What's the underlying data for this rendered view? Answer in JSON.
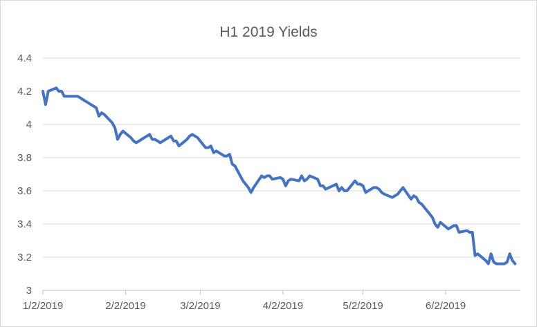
{
  "colors": {
    "series": "#4472c4",
    "grid": "#d9d9d9",
    "text": "#595959"
  },
  "chart_data": {
    "type": "line",
    "title": "H1 2019 Yields",
    "xlabel": "",
    "ylabel": "",
    "ylim": [
      3,
      4.4
    ],
    "y_ticks": [
      "3",
      "3.2",
      "3.4",
      "3.6",
      "3.8",
      "4",
      "4.2",
      "4.4"
    ],
    "x_ticks": [
      "1/2/2019",
      "2/2/2019",
      "3/2/2019",
      "4/2/2019",
      "5/2/2019",
      "6/2/2019"
    ],
    "x_tick_dates": [
      "2019-01-02",
      "2019-02-02",
      "2019-03-02",
      "2019-04-02",
      "2019-05-02",
      "2019-06-02"
    ],
    "grid": true,
    "legend": "none",
    "series": [
      {
        "x": [
          "2019-01-02",
          "2019-01-03",
          "2019-01-04",
          "2019-01-07",
          "2019-01-08",
          "2019-01-09",
          "2019-01-10",
          "2019-01-11",
          "2019-01-14",
          "2019-01-15",
          "2019-01-16",
          "2019-01-17",
          "2019-01-18",
          "2019-01-22",
          "2019-01-23",
          "2019-01-24",
          "2019-01-25",
          "2019-01-28",
          "2019-01-29",
          "2019-01-30",
          "2019-01-31",
          "2019-02-01",
          "2019-02-04",
          "2019-02-05",
          "2019-02-06",
          "2019-02-07",
          "2019-02-08",
          "2019-02-11",
          "2019-02-12",
          "2019-02-13",
          "2019-02-14",
          "2019-02-15",
          "2019-02-19",
          "2019-02-20",
          "2019-02-21",
          "2019-02-22",
          "2019-02-25",
          "2019-02-26",
          "2019-02-27",
          "2019-02-28",
          "2019-03-01",
          "2019-03-04",
          "2019-03-05",
          "2019-03-06",
          "2019-03-07",
          "2019-03-08",
          "2019-03-11",
          "2019-03-12",
          "2019-03-13",
          "2019-03-14",
          "2019-03-15",
          "2019-03-18",
          "2019-03-19",
          "2019-03-20",
          "2019-03-21",
          "2019-03-22",
          "2019-03-25",
          "2019-03-26",
          "2019-03-27",
          "2019-03-28",
          "2019-03-29",
          "2019-04-01",
          "2019-04-02",
          "2019-04-03",
          "2019-04-04",
          "2019-04-05",
          "2019-04-08",
          "2019-04-09",
          "2019-04-10",
          "2019-04-11",
          "2019-04-12",
          "2019-04-15",
          "2019-04-16",
          "2019-04-17",
          "2019-04-18",
          "2019-04-22",
          "2019-04-23",
          "2019-04-24",
          "2019-04-25",
          "2019-04-26",
          "2019-04-29",
          "2019-04-30",
          "2019-05-01",
          "2019-05-02",
          "2019-05-03",
          "2019-05-06",
          "2019-05-07",
          "2019-05-08",
          "2019-05-09",
          "2019-05-10",
          "2019-05-13",
          "2019-05-14",
          "2019-05-15",
          "2019-05-16",
          "2019-05-17",
          "2019-05-20",
          "2019-05-21",
          "2019-05-22",
          "2019-05-23",
          "2019-05-24",
          "2019-05-28",
          "2019-05-29",
          "2019-05-30",
          "2019-05-31",
          "2019-06-03",
          "2019-06-04",
          "2019-06-05",
          "2019-06-06",
          "2019-06-07",
          "2019-06-10",
          "2019-06-11",
          "2019-06-12",
          "2019-06-13",
          "2019-06-14",
          "2019-06-17",
          "2019-06-18",
          "2019-06-19",
          "2019-06-20",
          "2019-06-21",
          "2019-06-24",
          "2019-06-25",
          "2019-06-26",
          "2019-06-27",
          "2019-06-28"
        ],
        "values": [
          4.2,
          4.12,
          4.2,
          4.22,
          4.2,
          4.2,
          4.17,
          4.17,
          4.17,
          4.17,
          4.16,
          4.15,
          4.14,
          4.1,
          4.05,
          4.07,
          4.06,
          4.01,
          3.98,
          3.91,
          3.94,
          3.96,
          3.92,
          3.9,
          3.89,
          3.9,
          3.91,
          3.94,
          3.91,
          3.91,
          3.9,
          3.89,
          3.93,
          3.9,
          3.9,
          3.87,
          3.91,
          3.93,
          3.94,
          3.93,
          3.92,
          3.86,
          3.86,
          3.87,
          3.83,
          3.84,
          3.81,
          3.81,
          3.82,
          3.76,
          3.75,
          3.66,
          3.64,
          3.62,
          3.59,
          3.62,
          3.69,
          3.68,
          3.69,
          3.69,
          3.67,
          3.68,
          3.67,
          3.63,
          3.66,
          3.67,
          3.66,
          3.69,
          3.66,
          3.67,
          3.69,
          3.67,
          3.63,
          3.63,
          3.61,
          3.64,
          3.6,
          3.62,
          3.6,
          3.6,
          3.66,
          3.64,
          3.64,
          3.63,
          3.59,
          3.62,
          3.62,
          3.61,
          3.59,
          3.58,
          3.56,
          3.57,
          3.58,
          3.6,
          3.62,
          3.55,
          3.57,
          3.56,
          3.53,
          3.52,
          3.44,
          3.4,
          3.38,
          3.41,
          3.37,
          3.38,
          3.39,
          3.39,
          3.35,
          3.36,
          3.35,
          3.35,
          3.21,
          3.22,
          3.18,
          3.16,
          3.22,
          3.17,
          3.16,
          3.16,
          3.17,
          3.22,
          3.18,
          3.16
        ]
      }
    ]
  }
}
